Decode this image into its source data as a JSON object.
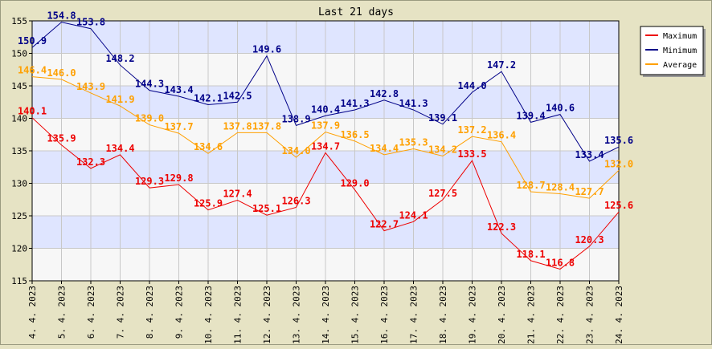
{
  "colors": {
    "background": "#e6e3c4",
    "band_blue": "#dfe5ff",
    "band_light": "#f7f7f7",
    "grid": "#c8c8c8",
    "max": "#ee0000",
    "min": "#000088",
    "avg": "#ffa000"
  },
  "chart_data": {
    "type": "line",
    "title": "Last 21 days",
    "xlabel": "",
    "ylabel": "",
    "ylim": [
      115,
      155
    ],
    "yticks": [
      115,
      120,
      125,
      130,
      135,
      140,
      145,
      150,
      155
    ],
    "grid": true,
    "legend_position": "top-right",
    "categories": [
      "4. 4. 2023",
      "5. 4. 2023",
      "6. 4. 2023",
      "7. 4. 2023",
      "8. 4. 2023",
      "9. 4. 2023",
      "10. 4. 2023",
      "11. 4. 2023",
      "12. 4. 2023",
      "13. 4. 2023",
      "14. 4. 2023",
      "15. 4. 2023",
      "16. 4. 2023",
      "17. 4. 2023",
      "18. 4. 2023",
      "19. 4. 2023",
      "20. 4. 2023",
      "21. 4. 2023",
      "22. 4. 2023",
      "23. 4. 2023",
      "24. 4. 2023"
    ],
    "series": [
      {
        "name": "Maximum",
        "color": "#ee0000",
        "values": [
          140.1,
          135.9,
          132.3,
          134.4,
          129.3,
          129.8,
          125.9,
          127.4,
          125.1,
          126.3,
          134.7,
          129.0,
          122.7,
          124.1,
          127.5,
          133.5,
          122.3,
          118.1,
          116.8,
          120.3,
          125.6
        ],
        "labels": [
          "140.1",
          "135.9",
          "132.3",
          "134.4",
          "129.3",
          "129.8",
          "125.9",
          "127.4",
          "125.1",
          "126.3",
          "134.7",
          "129.0",
          "122.7",
          "124.1",
          "127.5",
          "133.5",
          "122.3",
          "118.1",
          "116.8",
          "120.3",
          "125.6"
        ]
      },
      {
        "name": "Minimum",
        "color": "#000088",
        "values": [
          150.9,
          154.8,
          153.8,
          148.2,
          144.3,
          143.4,
          142.1,
          142.5,
          149.6,
          138.9,
          140.4,
          141.3,
          142.8,
          141.3,
          139.1,
          144.0,
          147.2,
          139.4,
          140.6,
          133.4,
          135.6
        ],
        "labels": [
          "150.9",
          "154.8",
          "153.8",
          "148.2",
          "144.3",
          "143.4",
          "142.1",
          "142.5",
          "149.6",
          "138.9",
          "140.4",
          "141.3",
          "142.8",
          "141.3",
          "139.1",
          "144.0",
          "147.2",
          "139.4",
          "140.6",
          "133.4",
          "135.6"
        ]
      },
      {
        "name": "Average",
        "color": "#ffa000",
        "values": [
          146.4,
          146.0,
          143.9,
          141.9,
          139.0,
          137.7,
          134.6,
          137.8,
          137.8,
          134.0,
          137.9,
          136.5,
          134.4,
          135.3,
          134.2,
          137.2,
          136.4,
          128.7,
          128.4,
          127.7,
          132.0
        ],
        "labels": [
          "146.4",
          "146.0",
          "143.9",
          "141.9",
          "139.0",
          "137.7",
          "134.6",
          "137.8",
          "137.8",
          "134.0",
          "137.9",
          "136.5",
          "134.4",
          "135.3",
          "134.2",
          "137.2",
          "136.4",
          "128.7",
          "128.4",
          "127.7",
          "132.0"
        ]
      }
    ]
  }
}
